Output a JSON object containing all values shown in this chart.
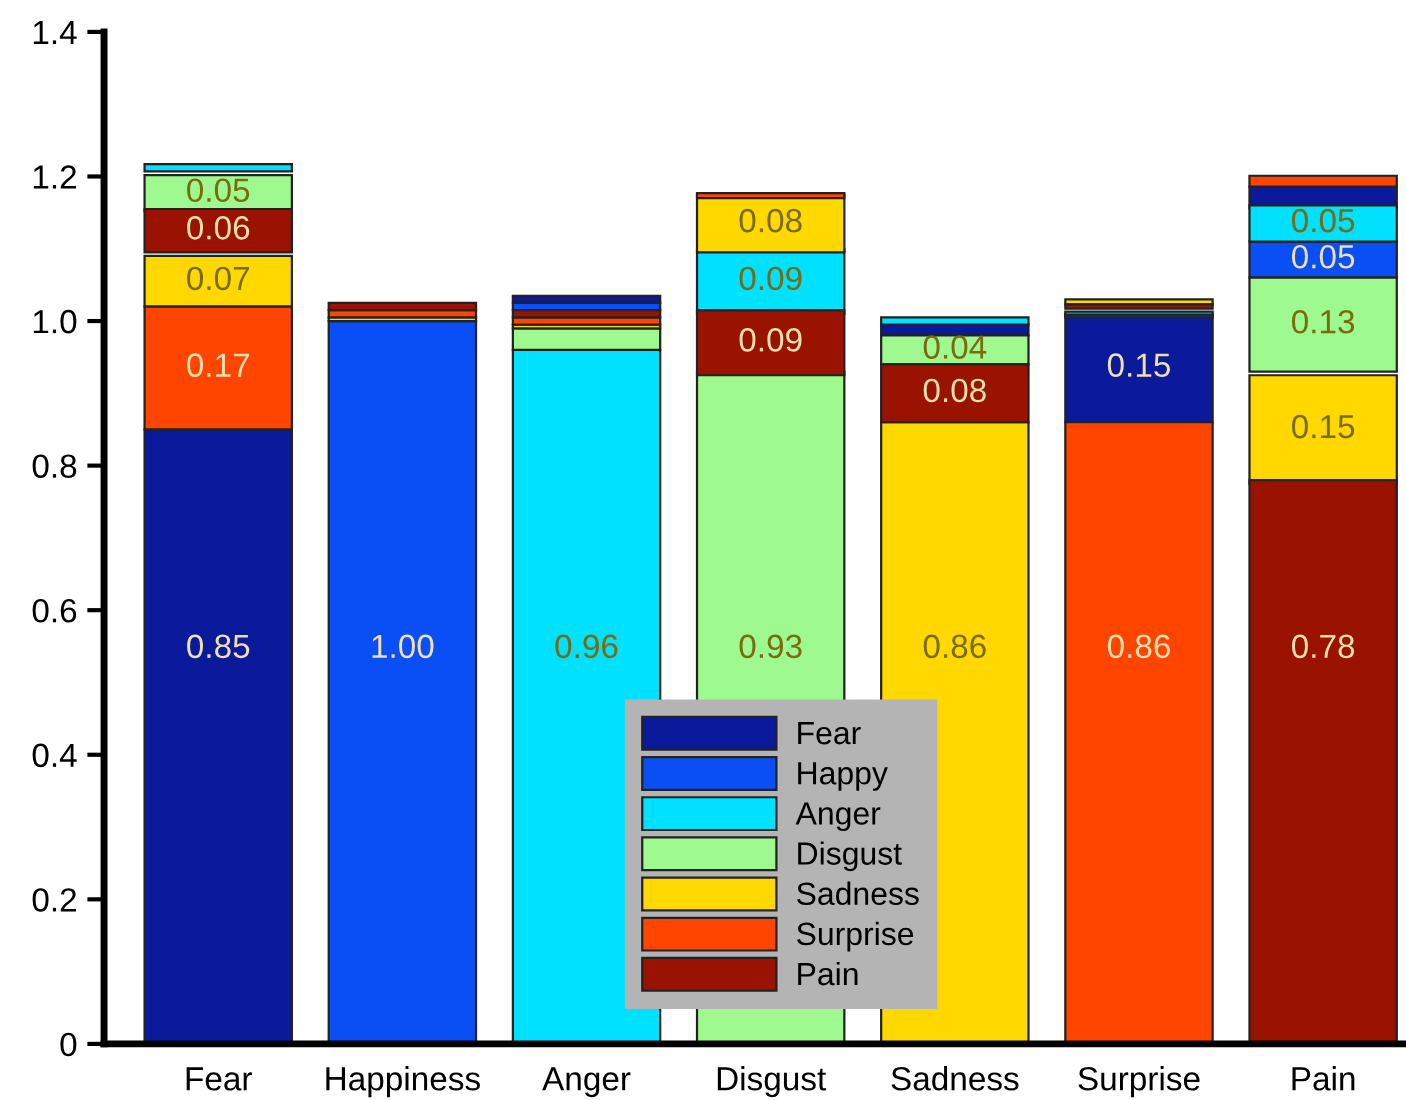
{
  "chart_data": {
    "type": "bar",
    "categories": [
      "Fear",
      "Happiness",
      "Anger",
      "Disgust",
      "Sadness",
      "Surprise",
      "Pain"
    ],
    "series": [
      {
        "name": "Fear",
        "color": "#0a1a9a",
        "values": [
          0.85,
          null,
          0.01,
          null,
          0.015,
          0.15,
          0.03
        ],
        "base": [
          0,
          null,
          1.025,
          null,
          0.98,
          0.86,
          1.156
        ],
        "value_labels": [
          "0.85",
          null,
          null,
          null,
          null,
          "0.15",
          null
        ]
      },
      {
        "name": "Happy",
        "color": "#0a4ef5",
        "values": [
          null,
          1.0,
          0.01,
          null,
          null,
          0.004,
          0.05
        ],
        "base": [
          null,
          0,
          1.015,
          null,
          null,
          1.005,
          1.06
        ],
        "value_labels": [
          null,
          "1.00",
          null,
          null,
          null,
          null,
          "0.05"
        ]
      },
      {
        "name": "Anger",
        "color": "#00e0ff",
        "values": [
          0.01,
          null,
          0.96,
          0.09,
          0.01,
          0.004,
          0.05
        ],
        "base": [
          1.207,
          null,
          0,
          1.01,
          0.995,
          1.009,
          1.11
        ],
        "value_labels": [
          null,
          null,
          "0.96",
          "0.09",
          null,
          null,
          "0.05"
        ]
      },
      {
        "name": "Disgust",
        "color": "#9efa8e",
        "values": [
          0.05,
          null,
          0.03,
          0.93,
          0.04,
          null,
          0.13
        ],
        "base": [
          1.152,
          null,
          0.96,
          0,
          0.94,
          null,
          0.93
        ],
        "value_labels": [
          "0.05",
          null,
          null,
          "0.93",
          "0.04",
          null,
          "0.13"
        ]
      },
      {
        "name": "Sadness",
        "color": "#ffd800",
        "values": [
          0.07,
          0.005,
          0.005,
          0.08,
          0.86,
          0.007,
          0.15
        ],
        "base": [
          1.02,
          1.0,
          0.99,
          1.095,
          0,
          1.023,
          0.775
        ],
        "value_labels": [
          "0.07",
          null,
          null,
          "0.08",
          "0.86",
          null,
          "0.15"
        ]
      },
      {
        "name": "Surprise",
        "color": "#ff4500",
        "values": [
          0.17,
          0.01,
          0.01,
          0.007,
          null,
          0.86,
          0.015
        ],
        "base": [
          0.85,
          1.005,
          0.995,
          1.17,
          null,
          0,
          1.186
        ],
        "value_labels": [
          "0.17",
          null,
          null,
          null,
          null,
          "0.86",
          null
        ]
      },
      {
        "name": "Pain",
        "color": "#9a1200",
        "values": [
          0.06,
          0.01,
          0.01,
          0.09,
          0.08,
          0.006,
          0.78
        ],
        "base": [
          1.095,
          1.015,
          1.005,
          0.925,
          0.86,
          1.017,
          0
        ],
        "value_labels": [
          "0.06",
          null,
          null,
          "0.09",
          "0.08",
          null,
          "0.78"
        ]
      }
    ],
    "ylim": [
      0,
      1.4
    ],
    "yticks": [
      0,
      0.2,
      0.4,
      0.6,
      0.8,
      {
        "value": 1.0,
        "label": "1.0"
      },
      1.2,
      1.4
    ],
    "legend": "bottom",
    "grid": false
  }
}
